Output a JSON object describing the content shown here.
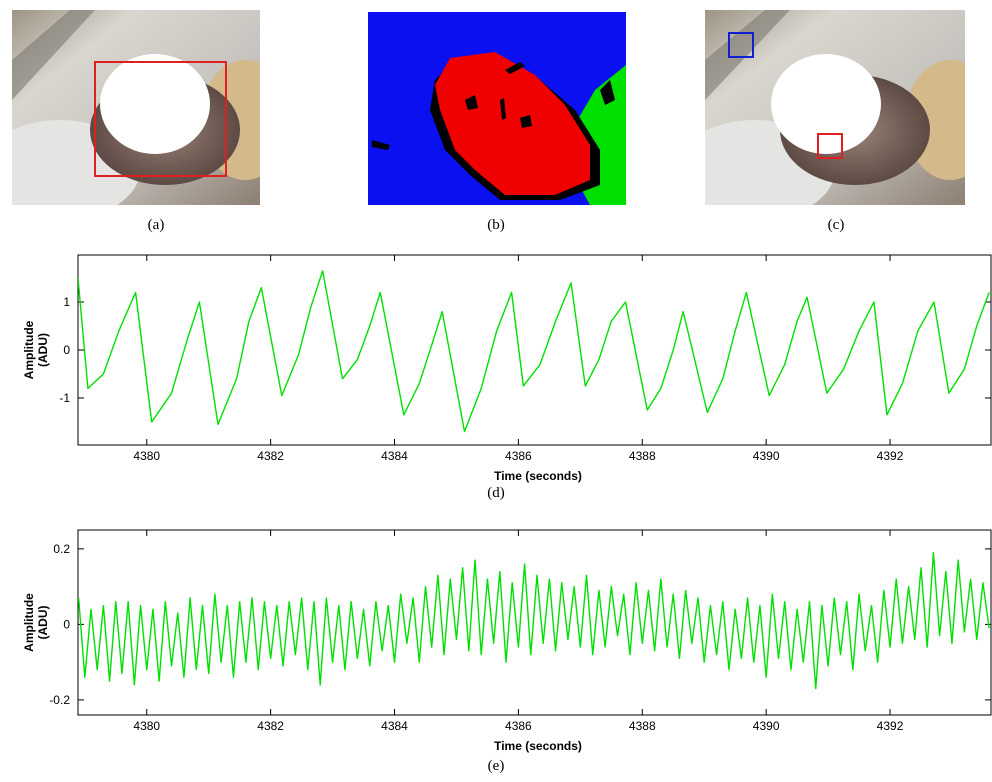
{
  "captions": [
    "(a)",
    "(b)",
    "(c)",
    "(d)",
    "(e)"
  ],
  "chart_data": [
    {
      "type": "line",
      "xlabel": "Time (seconds)",
      "ylabel": [
        "Amplitude",
        "(ADU)"
      ],
      "color": "#00e000",
      "xlim": [
        4378.89,
        4393.63
      ],
      "ylim": [
        -1.98,
        1.98
      ],
      "xticks": [
        4380,
        4382,
        4384,
        4386,
        4388,
        4390,
        4392
      ],
      "yticks": [
        -1,
        0,
        1
      ],
      "x": [
        4378.89,
        4379.05,
        4379.3,
        4379.55,
        4379.82,
        4380.08,
        4380.4,
        4380.65,
        4380.85,
        4381.15,
        4381.45,
        4381.65,
        4381.85,
        4382.18,
        4382.45,
        4382.65,
        4382.84,
        4383.16,
        4383.4,
        4383.6,
        4383.77,
        4384.15,
        4384.4,
        4384.6,
        4384.77,
        4385.13,
        4385.4,
        4385.65,
        4385.89,
        4386.08,
        4386.35,
        4386.6,
        4386.85,
        4387.08,
        4387.3,
        4387.5,
        4387.73,
        4388.08,
        4388.3,
        4388.5,
        4388.66,
        4389.05,
        4389.3,
        4389.5,
        4389.68,
        4390.05,
        4390.3,
        4390.5,
        4390.66,
        4390.98,
        4391.25,
        4391.5,
        4391.74,
        4391.95,
        4392.2,
        4392.45,
        4392.71,
        4392.95,
        4393.2,
        4393.4,
        4393.6
      ],
      "values": [
        1.5,
        -0.8,
        -0.5,
        0.4,
        1.2,
        -1.5,
        -0.9,
        0.2,
        1.0,
        -1.55,
        -0.6,
        0.6,
        1.3,
        -0.95,
        -0.1,
        0.9,
        1.65,
        -0.6,
        -0.2,
        0.5,
        1.2,
        -1.35,
        -0.7,
        0.1,
        0.8,
        -1.7,
        -0.8,
        0.4,
        1.2,
        -0.75,
        -0.3,
        0.6,
        1.4,
        -0.75,
        -0.2,
        0.6,
        1.0,
        -1.25,
        -0.8,
        0.0,
        0.8,
        -1.3,
        -0.6,
        0.4,
        1.2,
        -0.95,
        -0.3,
        0.6,
        1.1,
        -0.9,
        -0.4,
        0.4,
        1.0,
        -1.35,
        -0.7,
        0.4,
        1.0,
        -0.9,
        -0.4,
        0.5,
        1.2
      ]
    },
    {
      "type": "line",
      "xlabel": "Time (seconds)",
      "ylabel": [
        "Amplitude",
        "(ADU)"
      ],
      "color": "#00e000",
      "xlim": [
        4378.89,
        4393.63
      ],
      "ylim": [
        -0.24,
        0.25
      ],
      "xticks": [
        4380,
        4382,
        4384,
        4386,
        4388,
        4390,
        4392
      ],
      "yticks": [
        -0.2,
        0,
        0.2
      ],
      "x": [
        4378.9,
        4379,
        4379.1,
        4379.2,
        4379.3,
        4379.4,
        4379.5,
        4379.6,
        4379.7,
        4379.8,
        4379.9,
        4380,
        4380.1,
        4380.2,
        4380.3,
        4380.4,
        4380.5,
        4380.6,
        4380.7,
        4380.8,
        4380.9,
        4381,
        4381.1,
        4381.2,
        4381.3,
        4381.4,
        4381.5,
        4381.6,
        4381.7,
        4381.8,
        4381.9,
        4382,
        4382.1,
        4382.2,
        4382.3,
        4382.4,
        4382.5,
        4382.6,
        4382.7,
        4382.8,
        4382.9,
        4383,
        4383.1,
        4383.2,
        4383.3,
        4383.4,
        4383.5,
        4383.6,
        4383.7,
        4383.8,
        4383.9,
        4384,
        4384.1,
        4384.2,
        4384.3,
        4384.4,
        4384.5,
        4384.6,
        4384.7,
        4384.8,
        4384.9,
        4385,
        4385.1,
        4385.2,
        4385.3,
        4385.4,
        4385.5,
        4385.6,
        4385.7,
        4385.8,
        4385.9,
        4386,
        4386.1,
        4386.2,
        4386.3,
        4386.4,
        4386.5,
        4386.6,
        4386.7,
        4386.8,
        4386.9,
        4387,
        4387.1,
        4387.2,
        4387.3,
        4387.4,
        4387.5,
        4387.6,
        4387.7,
        4387.8,
        4387.9,
        4388,
        4388.1,
        4388.2,
        4388.3,
        4388.4,
        4388.5,
        4388.6,
        4388.7,
        4388.8,
        4388.9,
        4389,
        4389.1,
        4389.2,
        4389.3,
        4389.4,
        4389.5,
        4389.6,
        4389.7,
        4389.8,
        4389.9,
        4390,
        4390.1,
        4390.2,
        4390.3,
        4390.4,
        4390.5,
        4390.6,
        4390.7,
        4390.8,
        4390.9,
        4391,
        4391.1,
        4391.2,
        4391.3,
        4391.4,
        4391.5,
        4391.6,
        4391.7,
        4391.8,
        4391.9,
        4392,
        4392.1,
        4392.2,
        4392.3,
        4392.4,
        4392.5,
        4392.6,
        4392.7,
        4392.8,
        4392.9,
        4393,
        4393.1,
        4393.2,
        4393.3,
        4393.4,
        4393.5,
        4393.6
      ],
      "values": [
        0.07,
        -0.14,
        0.04,
        -0.12,
        0.05,
        -0.15,
        0.06,
        -0.13,
        0.06,
        -0.16,
        0.05,
        -0.12,
        0.04,
        -0.15,
        0.06,
        -0.11,
        0.03,
        -0.14,
        0.07,
        -0.12,
        0.05,
        -0.13,
        0.08,
        -0.1,
        0.05,
        -0.14,
        0.06,
        -0.1,
        0.07,
        -0.12,
        0.06,
        -0.09,
        0.05,
        -0.11,
        0.06,
        -0.08,
        0.07,
        -0.12,
        0.06,
        -0.16,
        0.07,
        -0.1,
        0.05,
        -0.12,
        0.06,
        -0.09,
        0.04,
        -0.11,
        0.06,
        -0.07,
        0.05,
        -0.1,
        0.08,
        -0.05,
        0.07,
        -0.1,
        0.1,
        -0.06,
        0.13,
        -0.08,
        0.12,
        -0.04,
        0.15,
        -0.07,
        0.17,
        -0.08,
        0.12,
        -0.05,
        0.14,
        -0.1,
        0.11,
        -0.06,
        0.16,
        -0.08,
        0.13,
        -0.05,
        0.12,
        -0.07,
        0.11,
        -0.04,
        0.1,
        -0.06,
        0.13,
        -0.08,
        0.09,
        -0.06,
        0.1,
        -0.03,
        0.08,
        -0.08,
        0.11,
        -0.05,
        0.09,
        -0.07,
        0.12,
        -0.06,
        0.08,
        -0.09,
        0.09,
        -0.05,
        0.07,
        -0.1,
        0.05,
        -0.08,
        0.06,
        -0.12,
        0.04,
        -0.09,
        0.07,
        -0.1,
        0.05,
        -0.14,
        0.08,
        -0.09,
        0.06,
        -0.12,
        0.04,
        -0.1,
        0.06,
        -0.17,
        0.05,
        -0.11,
        0.07,
        -0.08,
        0.06,
        -0.12,
        0.08,
        -0.07,
        0.05,
        -0.1,
        0.09,
        -0.06,
        0.12,
        -0.05,
        0.1,
        -0.04,
        0.15,
        -0.06,
        0.19,
        -0.03,
        0.14,
        -0.05,
        0.17,
        -0.02,
        0.12,
        -0.04,
        0.11,
        -0.01
      ]
    }
  ]
}
